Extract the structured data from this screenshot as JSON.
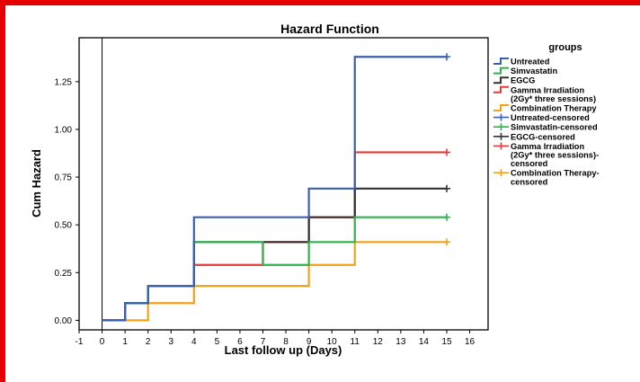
{
  "chart_data": {
    "type": "line",
    "title": "Hazard Function",
    "xlabel": "Last follow up (Days)",
    "ylabel": "Cum Hazard",
    "xlim": [
      -1,
      16.8
    ],
    "ylim": [
      -0.05,
      1.48
    ],
    "xticks": [
      "-1",
      "0",
      "1",
      "2",
      "3",
      "4",
      "5",
      "6",
      "7",
      "8",
      "9",
      "10",
      "11",
      "12",
      "13",
      "14",
      "15",
      "16"
    ],
    "yticks": [
      "0.00",
      "0.25",
      "0.50",
      "0.75",
      "1.00",
      "1.25"
    ],
    "ytick_values": [
      0,
      0.25,
      0.5,
      0.75,
      1.0,
      1.25
    ],
    "reference_line_x": 0,
    "legend_title": "groups",
    "legend_position": "right",
    "series": [
      {
        "name": "Untreated",
        "color": "#3b5fb0",
        "x": [
          0,
          1,
          2,
          4,
          9,
          11,
          15
        ],
        "y": [
          0,
          0.09,
          0.18,
          0.54,
          0.69,
          1.38,
          1.38
        ]
      },
      {
        "name": "Simvastatin",
        "color": "#2fb34a",
        "x": [
          0,
          1,
          2,
          4,
          7,
          9,
          11,
          15
        ],
        "y": [
          0,
          0.09,
          0.18,
          0.41,
          0.29,
          0.41,
          0.54,
          0.54
        ]
      },
      {
        "name": "EGCG",
        "color": "#333333",
        "x": [
          0,
          1,
          2,
          4,
          9,
          11,
          15
        ],
        "y": [
          0,
          0.09,
          0.18,
          0.41,
          0.54,
          0.69,
          0.69
        ]
      },
      {
        "name": "Gamma Irradiation (2Gy* three sessions)",
        "color": "#e23b3b",
        "x": [
          0,
          1,
          2,
          4,
          7,
          9,
          11,
          15
        ],
        "y": [
          0,
          0.09,
          0.18,
          0.29,
          0.41,
          0.54,
          0.88,
          0.88
        ]
      },
      {
        "name": "Combination Therapy",
        "color": "#f5a11a",
        "x": [
          0,
          2,
          4,
          9,
          11,
          15
        ],
        "y": [
          0,
          0.09,
          0.18,
          0.29,
          0.41,
          0.41
        ]
      }
    ],
    "censored": [
      {
        "name": "Untreated-censored",
        "color": "#3b5fb0",
        "x": 15,
        "y": 1.38
      },
      {
        "name": "Simvastatin-censored",
        "color": "#2fb34a",
        "x": 15,
        "y": 0.54
      },
      {
        "name": "EGCG-censored",
        "color": "#333333",
        "x": 15,
        "y": 0.69
      },
      {
        "name": "Gamma Irradiation (2Gy* three sessions)-censored",
        "color": "#e23b3b",
        "x": 15,
        "y": 0.88
      },
      {
        "name": "Combination Therapy-censored",
        "color": "#f5a11a",
        "x": 15,
        "y": 0.41
      }
    ],
    "legend": [
      {
        "kind": "line",
        "color": "#3b5fb0",
        "lines": [
          "Untreated"
        ]
      },
      {
        "kind": "line",
        "color": "#2fb34a",
        "lines": [
          "Simvastatin"
        ]
      },
      {
        "kind": "line",
        "color": "#333333",
        "lines": [
          "EGCG"
        ]
      },
      {
        "kind": "line",
        "color": "#e23b3b",
        "lines": [
          "Gamma Irradiation",
          "(2Gy* three sessions)"
        ]
      },
      {
        "kind": "line",
        "color": "#f5a11a",
        "lines": [
          "Combination Therapy"
        ]
      },
      {
        "kind": "cross",
        "color": "#3b5fb0",
        "lines": [
          "Untreated-censored"
        ]
      },
      {
        "kind": "cross",
        "color": "#2fb34a",
        "lines": [
          "Simvastatin-censored"
        ]
      },
      {
        "kind": "cross",
        "color": "#333333",
        "lines": [
          "EGCG-censored"
        ]
      },
      {
        "kind": "cross",
        "color": "#e23b3b",
        "lines": [
          "Gamma Irradiation",
          "(2Gy* three sessions)-",
          "censored"
        ]
      },
      {
        "kind": "cross",
        "color": "#f5a11a",
        "lines": [
          "Combination Therapy-",
          "censored"
        ]
      }
    ]
  },
  "colors": {
    "border": "#e60000",
    "axis": "#000000"
  }
}
